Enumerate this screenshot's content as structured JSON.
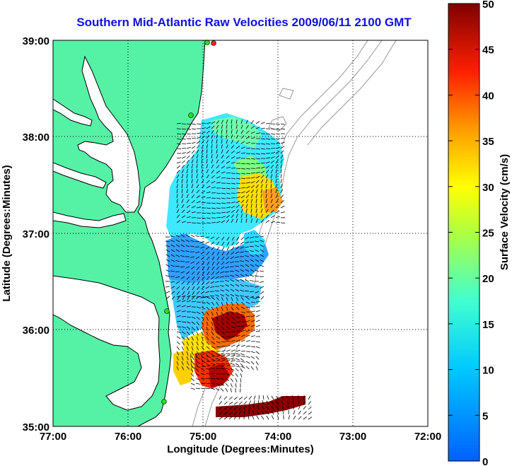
{
  "title": "Southern Mid-Atlantic Raw Velocities 2009/06/11 2100 GMT",
  "x_axis": {
    "label": "Longitude (Degrees:Minutes)",
    "ticks": [
      "77:00",
      "76:00",
      "75:00",
      "74:00",
      "73:00",
      "72:00"
    ]
  },
  "y_axis": {
    "label": "Latitude (Degrees:Minutes)",
    "ticks": [
      "39:00",
      "38:00",
      "37:00",
      "36:00",
      "35:00"
    ]
  },
  "colorbar": {
    "label": "Surface Velocity (cm/s)",
    "ticks": [
      "50",
      "45",
      "40",
      "35",
      "30",
      "25",
      "20",
      "15",
      "10",
      "5",
      "0"
    ],
    "min": 0,
    "max": 50
  },
  "colors": {
    "land": "#55f2a6",
    "title": "#1010e0",
    "station_green": "#22dd22",
    "station_red": "#ee2222"
  }
}
